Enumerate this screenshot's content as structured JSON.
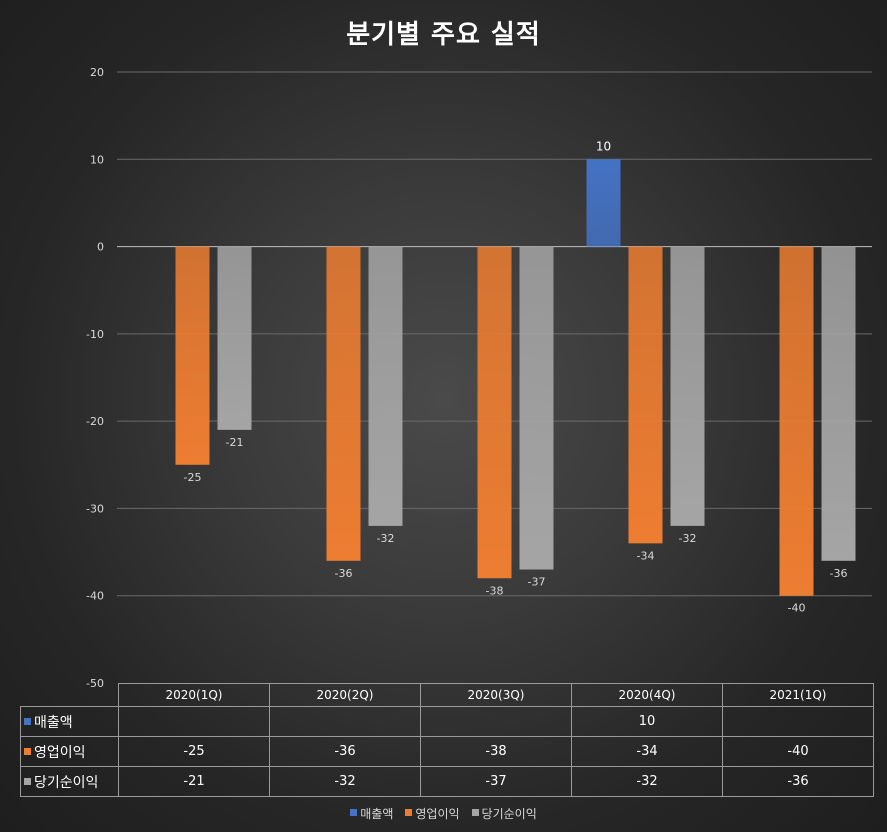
{
  "colors": {
    "revenue": "#4472C4",
    "operating_profit": "#ED7D31",
    "net_income": "#A5A5A5"
  },
  "chart_data": {
    "type": "bar",
    "title": "분기별 주요 실적",
    "categories": [
      "2020(1Q)",
      "2020(2Q)",
      "2020(3Q)",
      "2020(4Q)",
      "2021(1Q)"
    ],
    "series": [
      {
        "name": "매출액",
        "values": [
          null,
          null,
          null,
          10,
          null
        ]
      },
      {
        "name": "영업이익",
        "values": [
          -25,
          -36,
          -38,
          -34,
          -40
        ]
      },
      {
        "name": "당기순이익",
        "values": [
          -21,
          -32,
          -37,
          -32,
          -36
        ]
      }
    ],
    "ylim": [
      -50,
      20
    ],
    "yticks": [
      20,
      10,
      0,
      -10,
      -20,
      -30,
      -40,
      -50
    ],
    "grid": true,
    "legend": "bottom",
    "data_table": true
  }
}
